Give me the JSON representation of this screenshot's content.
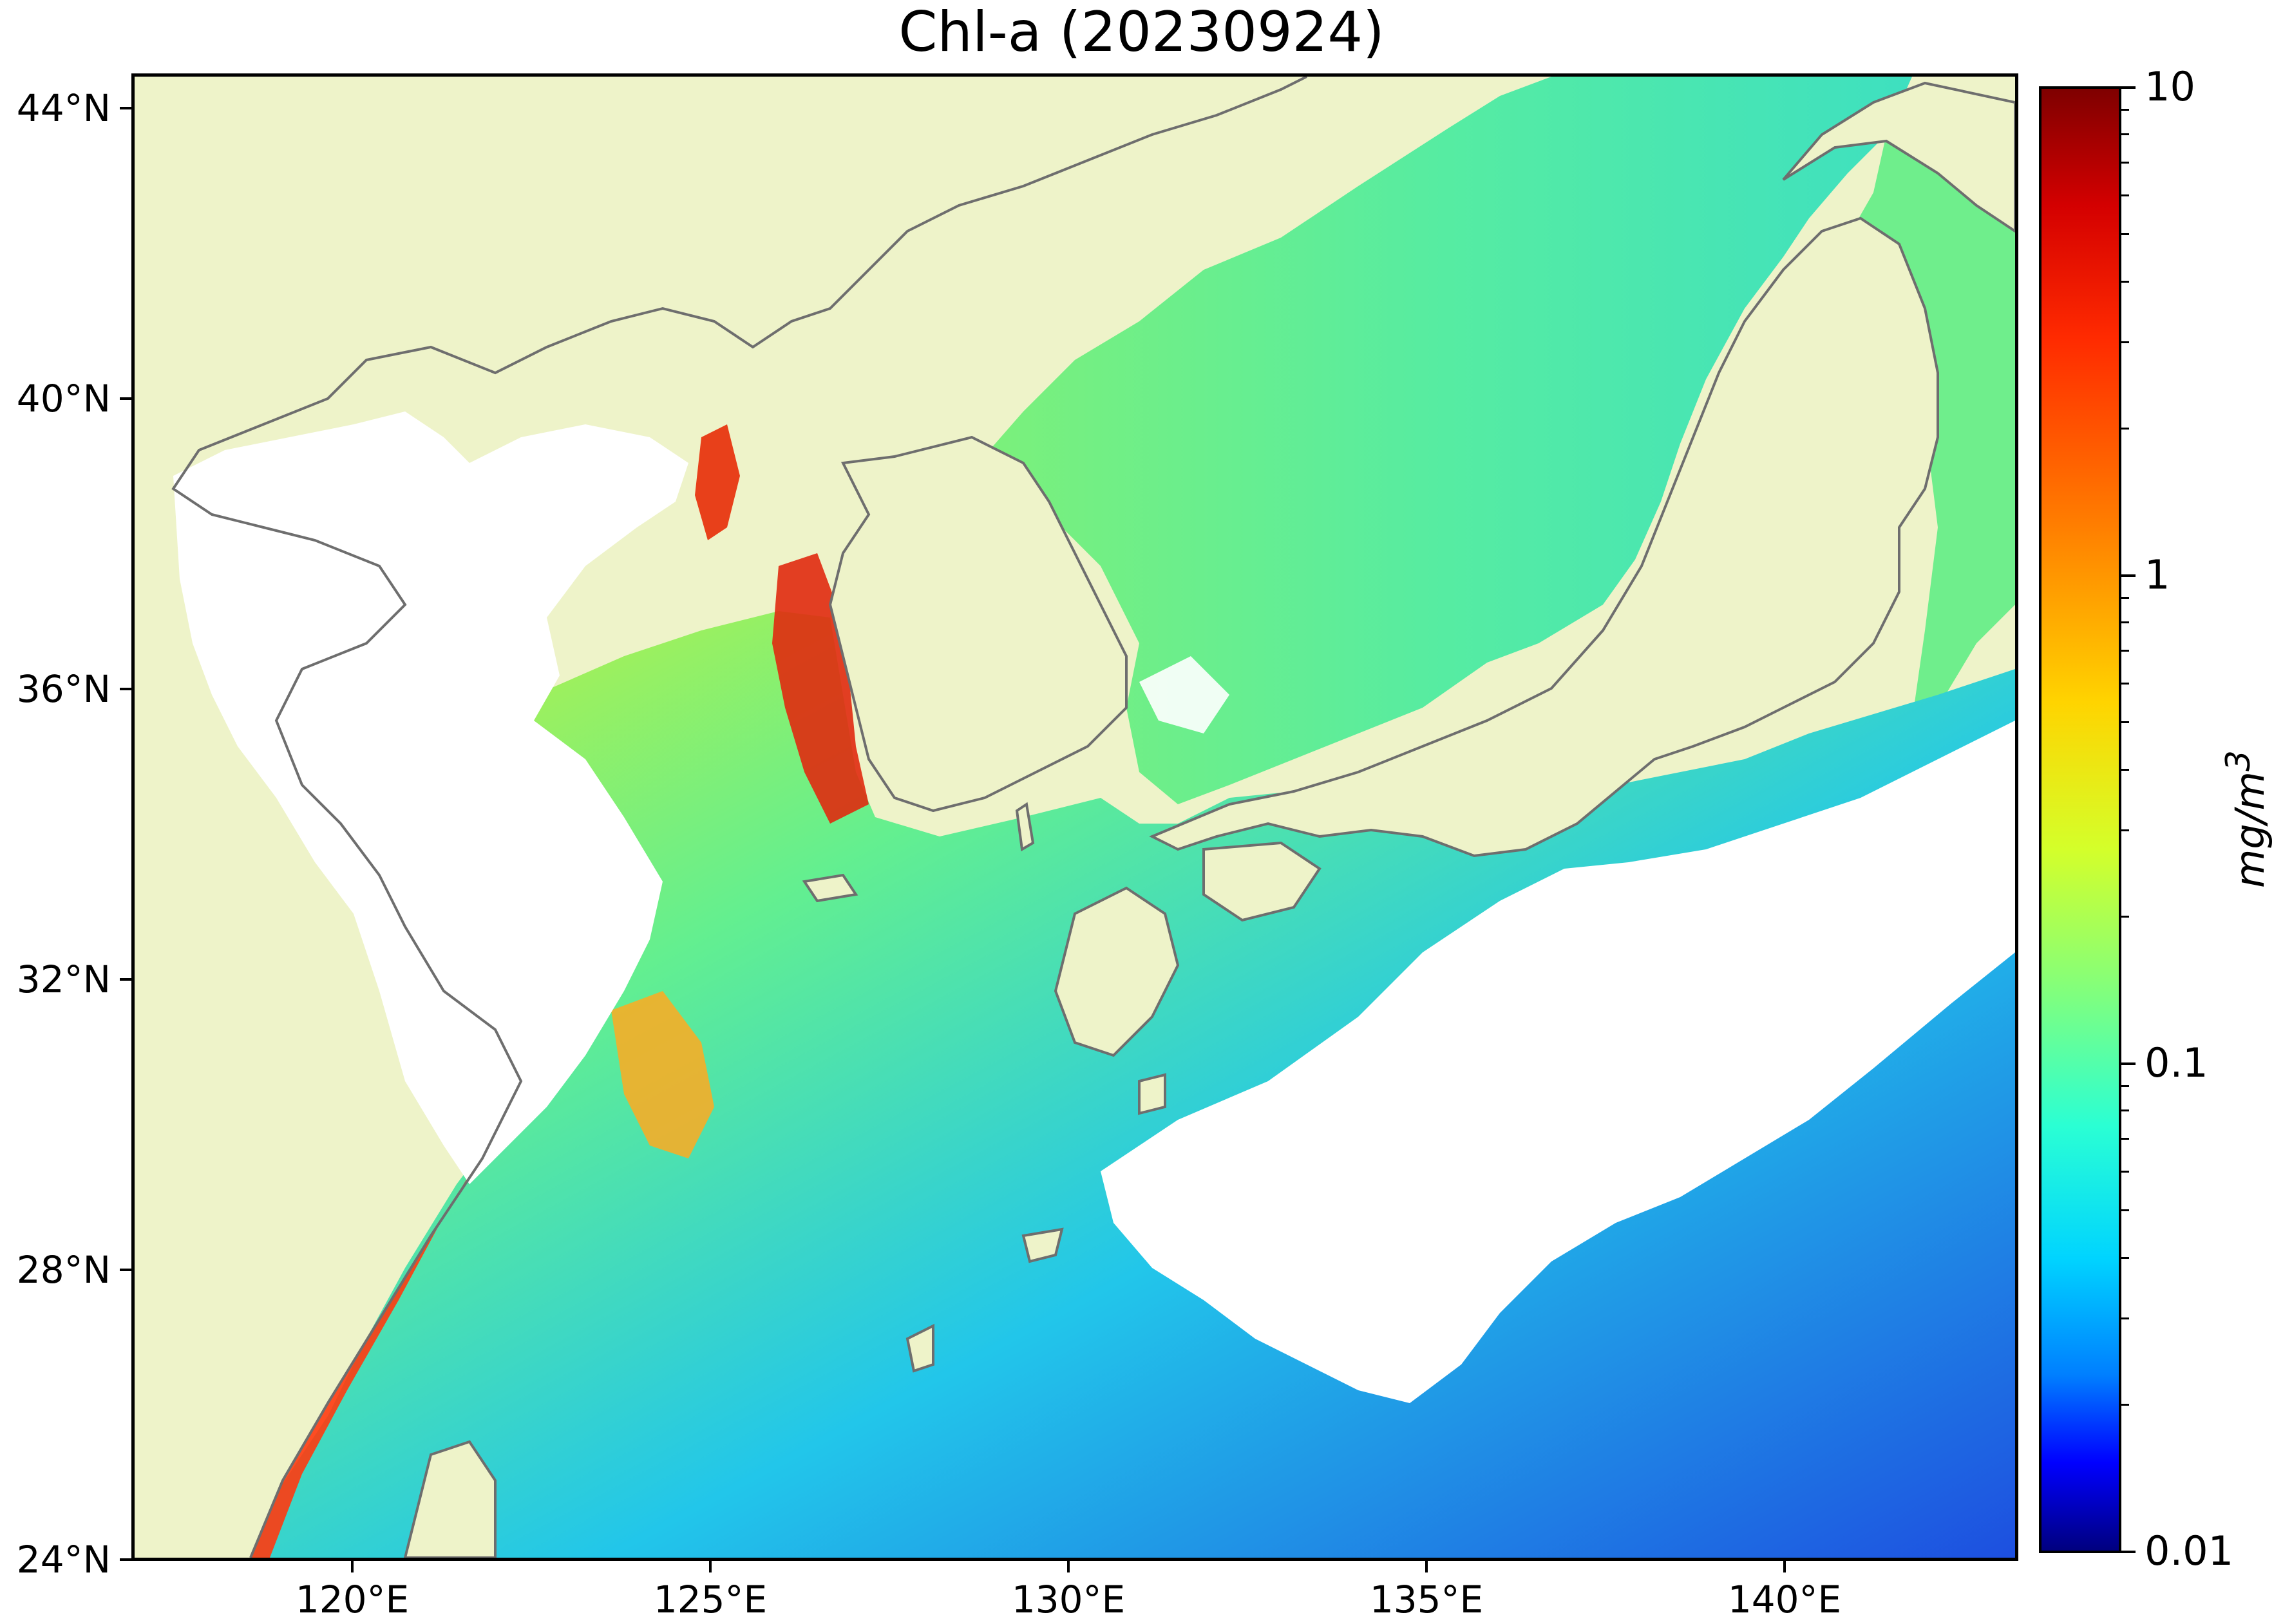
{
  "title": "Chl-a (20230924)",
  "map": {
    "lat_range": [
      24,
      44.5
    ],
    "lon_range": [
      116.5,
      143
    ],
    "lat_ticks": [
      "44°N",
      "40°N",
      "36°N",
      "32°N",
      "28°N",
      "24°N"
    ],
    "lon_ticks": [
      "120°E",
      "125°E",
      "130°E",
      "135°E",
      "140°E"
    ],
    "land_color": "#eef3c9",
    "coastline_color": "#6e6e6e",
    "no_data_color": "#ffffff"
  },
  "colorbar": {
    "scale": "log",
    "range": [
      0.01,
      10
    ],
    "tick_labels": [
      "10",
      "1",
      "0.1",
      "0.01"
    ],
    "unit": "mg/m",
    "unit_exponent": "3",
    "colormap": "jet"
  }
}
